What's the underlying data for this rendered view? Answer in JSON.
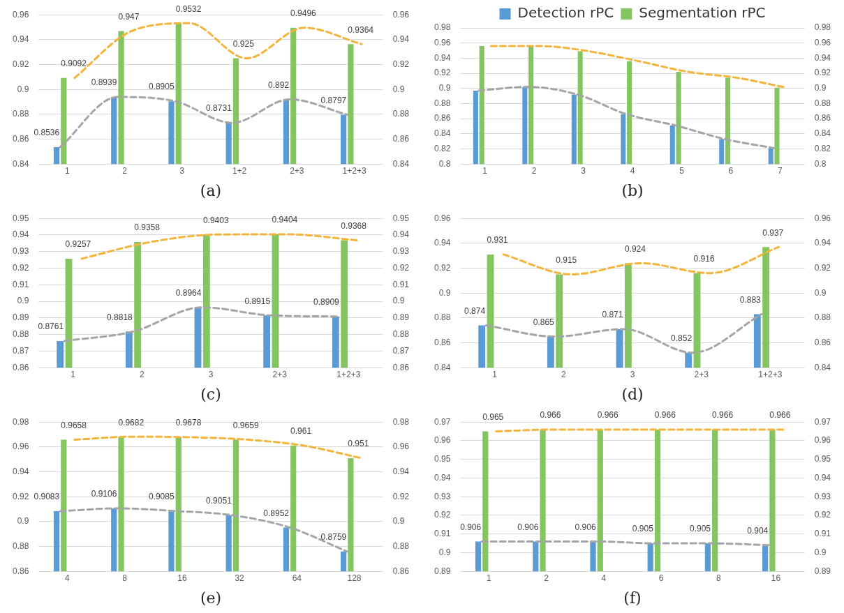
{
  "chart_data": [
    {
      "type": "bar",
      "xlabel": "(a)",
      "categories": [
        "1",
        "2",
        "3",
        "1+2",
        "2+3",
        "1+2+3"
      ],
      "ylim": [
        0.84,
        0.96
      ],
      "yticks": [
        0.84,
        0.86,
        0.88,
        0.9,
        0.92,
        0.94,
        0.96
      ],
      "y2lim": [
        0.84,
        0.96
      ],
      "y2ticks": [
        0.84,
        0.86,
        0.88,
        0.9,
        0.92,
        0.94,
        0.96
      ],
      "grid": "y",
      "line_style": "dashed",
      "marker": "none",
      "series": [
        {
          "color": "#5b9bd5",
          "values": [
            0.8536,
            0.8939,
            0.8905,
            0.8731,
            0.892,
            0.8797
          ],
          "value_labels": [
            "0.8536",
            "0.8939",
            "0.8905",
            "0.8731",
            "0.892",
            "0.8797"
          ]
        },
        {
          "color": "#84c561",
          "values": [
            0.9092,
            0.947,
            0.9532,
            0.925,
            0.9496,
            0.9364
          ],
          "value_labels": [
            "0.9092",
            "0.947",
            "0.9532",
            "0.925",
            "0.9496",
            "0.9364"
          ]
        },
        {
          "type": "line",
          "color": "#a5a5a5",
          "values": [
            0.8536,
            0.8939,
            0.8905,
            0.8731,
            0.892,
            0.8797
          ]
        },
        {
          "type": "line",
          "color": "#f4b43a",
          "values": [
            0.9092,
            0.947,
            0.9532,
            0.925,
            0.9496,
            0.9364
          ]
        }
      ]
    },
    {
      "type": "bar",
      "xlabel": "(b)",
      "categories": [
        "1",
        "2",
        "3",
        "4",
        "5",
        "6",
        "7"
      ],
      "ylim": [
        0.8,
        0.98
      ],
      "yticks": [
        0.8,
        0.82,
        0.84,
        0.86,
        0.88,
        0.9,
        0.92,
        0.94,
        0.96,
        0.98
      ],
      "y2lim": [
        0.8,
        0.98
      ],
      "y2ticks": [
        0.8,
        0.82,
        0.84,
        0.86,
        0.88,
        0.9,
        0.92,
        0.94,
        0.96,
        0.98
      ],
      "grid": "y",
      "legend": "top",
      "line_style": "dashed",
      "marker": "none",
      "series": [
        {
          "name": "Detection rPC",
          "color": "#5b9bd5",
          "values": [
            0.897,
            0.902,
            0.892,
            0.866,
            0.851,
            0.833,
            0.821
          ]
        },
        {
          "name": "Segmentation rPC",
          "color": "#84c561",
          "values": [
            0.956,
            0.956,
            0.949,
            0.936,
            0.922,
            0.914,
            0.901
          ]
        },
        {
          "type": "line",
          "color": "#a5a5a5",
          "values": [
            0.897,
            0.902,
            0.892,
            0.866,
            0.851,
            0.833,
            0.821
          ]
        },
        {
          "type": "line",
          "color": "#f4b43a",
          "values": [
            0.956,
            0.956,
            0.949,
            0.936,
            0.922,
            0.914,
            0.901
          ]
        }
      ]
    },
    {
      "type": "bar",
      "xlabel": "(c)",
      "categories": [
        "1",
        "2",
        "3",
        "2+3",
        "1+2+3"
      ],
      "ylim": [
        0.86,
        0.95
      ],
      "yticks": [
        0.86,
        0.87,
        0.88,
        0.89,
        0.9,
        0.91,
        0.92,
        0.93,
        0.94,
        0.95
      ],
      "y2lim": [
        0.86,
        0.95
      ],
      "y2ticks": [
        0.86,
        0.87,
        0.88,
        0.89,
        0.9,
        0.91,
        0.92,
        0.93,
        0.94,
        0.95
      ],
      "grid": "y",
      "line_style": "dashed",
      "marker": "none",
      "series": [
        {
          "color": "#5b9bd5",
          "values": [
            0.8761,
            0.8818,
            0.8964,
            0.8915,
            0.8909
          ],
          "value_labels": [
            "0.8761",
            "0.8818",
            "0.8964",
            "0.8915",
            "0.8909"
          ]
        },
        {
          "color": "#84c561",
          "values": [
            0.9257,
            0.9358,
            0.9403,
            0.9404,
            0.9368
          ],
          "value_labels": [
            "0.9257",
            "0.9358",
            "0.9403",
            "0.9404",
            "0.9368"
          ]
        },
        {
          "type": "line",
          "color": "#a5a5a5",
          "values": [
            0.8761,
            0.8818,
            0.8964,
            0.8915,
            0.8909
          ]
        },
        {
          "type": "line",
          "color": "#f4b43a",
          "values": [
            0.9257,
            0.9358,
            0.9403,
            0.9404,
            0.9368
          ]
        }
      ]
    },
    {
      "type": "bar",
      "xlabel": "(d)",
      "categories": [
        "1",
        "2",
        "3",
        "2+3",
        "1+2+3"
      ],
      "ylim": [
        0.84,
        0.96
      ],
      "yticks": [
        0.84,
        0.86,
        0.88,
        0.9,
        0.92,
        0.94,
        0.96
      ],
      "y2lim": [
        0.84,
        0.96
      ],
      "y2ticks": [
        0.84,
        0.86,
        0.88,
        0.9,
        0.92,
        0.94,
        0.96
      ],
      "grid": "y",
      "line_style": "dashed",
      "marker": "none",
      "series": [
        {
          "color": "#5b9bd5",
          "values": [
            0.874,
            0.865,
            0.871,
            0.852,
            0.883
          ],
          "value_labels": [
            "0.874",
            "0.865",
            "0.871",
            "0.852",
            "0.883"
          ]
        },
        {
          "color": "#84c561",
          "values": [
            0.931,
            0.915,
            0.924,
            0.916,
            0.937
          ],
          "value_labels": [
            "0.931",
            "0.915",
            "0.924",
            "0.916",
            "0.937"
          ]
        },
        {
          "type": "line",
          "color": "#a5a5a5",
          "values": [
            0.874,
            0.865,
            0.871,
            0.852,
            0.883
          ]
        },
        {
          "type": "line",
          "color": "#f4b43a",
          "values": [
            0.931,
            0.915,
            0.924,
            0.916,
            0.937
          ]
        }
      ]
    },
    {
      "type": "bar",
      "xlabel": "(e)",
      "categories": [
        "4",
        "8",
        "16",
        "32",
        "64",
        "128"
      ],
      "ylim": [
        0.86,
        0.98
      ],
      "yticks": [
        0.86,
        0.88,
        0.9,
        0.92,
        0.94,
        0.96,
        0.98
      ],
      "y2lim": [
        0.86,
        0.98
      ],
      "y2ticks": [
        0.86,
        0.88,
        0.9,
        0.92,
        0.94,
        0.96,
        0.98
      ],
      "grid": "y",
      "line_style": "dashed",
      "marker": "none",
      "series": [
        {
          "color": "#5b9bd5",
          "values": [
            0.9083,
            0.9106,
            0.9085,
            0.9051,
            0.8952,
            0.8759
          ],
          "value_labels": [
            "0.9083",
            "0.9106",
            "0.9085",
            "0.9051",
            "0.8952",
            "0.8759"
          ]
        },
        {
          "color": "#84c561",
          "values": [
            0.9658,
            0.9682,
            0.9678,
            0.9659,
            0.961,
            0.951
          ],
          "value_labels": [
            "0.9658",
            "0.9682",
            "0.9678",
            "0.9659",
            "0.961",
            "0.951"
          ]
        },
        {
          "type": "line",
          "color": "#a5a5a5",
          "values": [
            0.9083,
            0.9106,
            0.9085,
            0.9051,
            0.8952,
            0.8759
          ]
        },
        {
          "type": "line",
          "color": "#f4b43a",
          "values": [
            0.9658,
            0.9682,
            0.9678,
            0.9659,
            0.961,
            0.951
          ]
        }
      ]
    },
    {
      "type": "bar",
      "xlabel": "(f)",
      "categories": [
        "1",
        "2",
        "4",
        "6",
        "8",
        "16"
      ],
      "ylim": [
        0.89,
        0.97
      ],
      "yticks": [
        0.89,
        0.9,
        0.91,
        0.92,
        0.93,
        0.94,
        0.95,
        0.96,
        0.97
      ],
      "y2lim": [
        0.89,
        0.97
      ],
      "y2ticks": [
        0.89,
        0.9,
        0.91,
        0.92,
        0.93,
        0.94,
        0.95,
        0.96,
        0.97
      ],
      "grid": "y",
      "line_style": "dashed",
      "marker": "none",
      "series": [
        {
          "color": "#5b9bd5",
          "values": [
            0.906,
            0.906,
            0.906,
            0.905,
            0.905,
            0.904
          ],
          "value_labels": [
            "0.906",
            "0.906",
            "0.906",
            "0.905",
            "0.905",
            "0.904"
          ]
        },
        {
          "color": "#84c561",
          "values": [
            0.965,
            0.966,
            0.966,
            0.966,
            0.966,
            0.966
          ],
          "value_labels": [
            "0.965",
            "0.966",
            "0.966",
            "0.966",
            "0.966",
            "0.966"
          ]
        },
        {
          "type": "line",
          "color": "#a5a5a5",
          "values": [
            0.906,
            0.906,
            0.906,
            0.905,
            0.905,
            0.904
          ]
        },
        {
          "type": "line",
          "color": "#f4b43a",
          "values": [
            0.965,
            0.966,
            0.966,
            0.966,
            0.966,
            0.966
          ]
        }
      ]
    }
  ]
}
